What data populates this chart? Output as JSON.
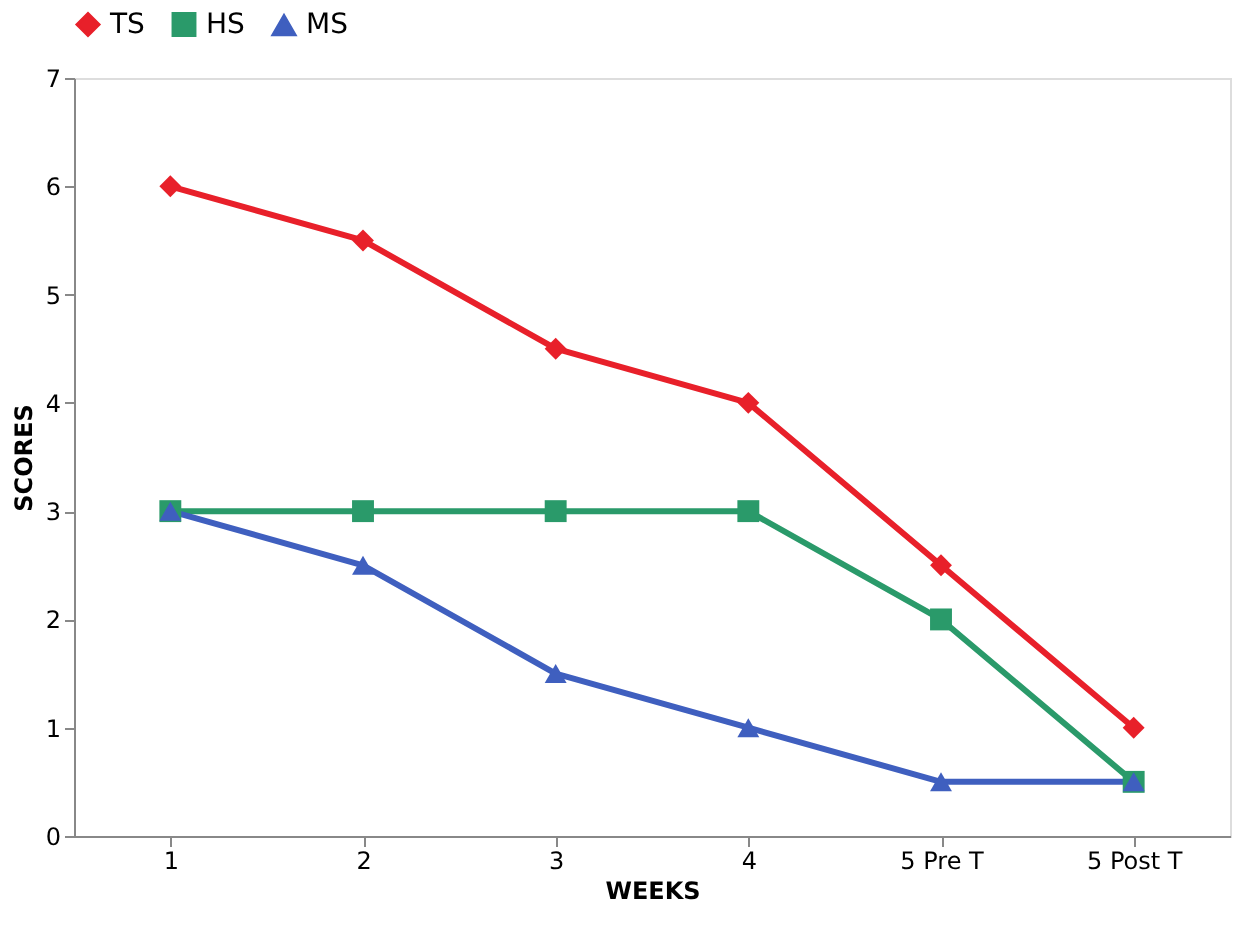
{
  "chart_data": {
    "type": "line",
    "xlabel": "WEEKS",
    "ylabel": "SCORES",
    "categories": [
      "1",
      "2",
      "3",
      "4",
      "5 Pre T",
      "5 Post T"
    ],
    "ylim": [
      0,
      7
    ],
    "yticks": [
      0,
      1,
      2,
      3,
      4,
      5,
      6,
      7
    ],
    "grid": false,
    "legend": "top",
    "line_style": "solid",
    "series": [
      {
        "name": "TS",
        "color": "#e8202a",
        "marker": "diamond",
        "values": [
          6,
          5.5,
          4.5,
          4,
          2.5,
          1
        ]
      },
      {
        "name": "HS",
        "color": "#2a9a6a",
        "marker": "square",
        "values": [
          3,
          3,
          3,
          3,
          2,
          0.5
        ]
      },
      {
        "name": "MS",
        "color": "#3f5fbf",
        "marker": "triangle",
        "values": [
          3,
          2.5,
          1.5,
          1,
          0.5,
          0.5
        ]
      }
    ]
  }
}
